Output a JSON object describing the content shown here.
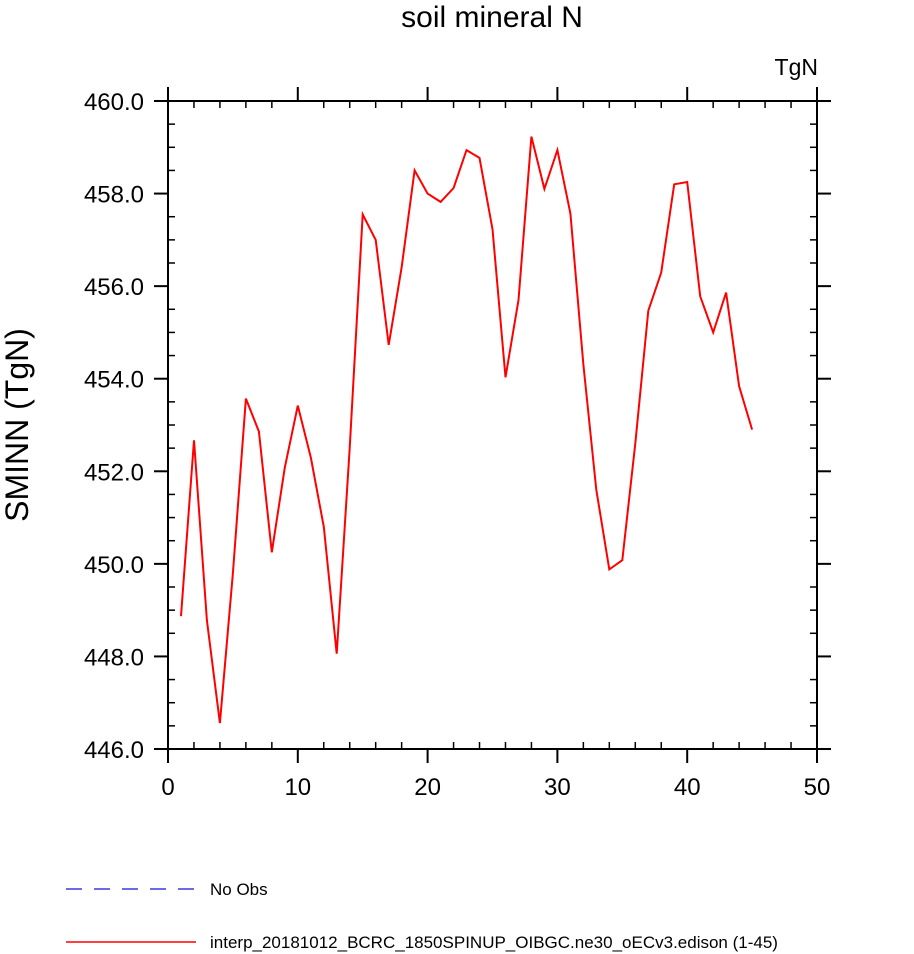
{
  "chart_data": {
    "type": "line",
    "title": "soil mineral N",
    "units": "TgN",
    "xlabel": "",
    "ylabel": "SMINN  (TgN)",
    "xlim": [
      0,
      50
    ],
    "ylim": [
      446,
      460
    ],
    "x_ticks": [
      0,
      10,
      20,
      30,
      40,
      50
    ],
    "x_tick_labels": [
      "0",
      "10",
      "20",
      "30",
      "40",
      "50"
    ],
    "y_ticks": [
      446,
      448,
      450,
      452,
      454,
      456,
      458,
      460
    ],
    "y_tick_labels": [
      "446.0",
      "448.0",
      "450.0",
      "452.0",
      "454.0",
      "456.0",
      "458.0",
      "460.0"
    ],
    "grid": false,
    "legend_position": "bottom",
    "legend": [
      {
        "label": "No Obs",
        "color": "#3a3adf",
        "style": "dashed"
      },
      {
        "label": "interp_20181012_BCRC_1850SPINUP_OIBGC.ne30_oECv3.edison (1-45)",
        "color": "#ff0000",
        "style": "solid"
      }
    ],
    "series": [
      {
        "name": "interp_20181012_BCRC_1850SPINUP_OIBGC.ne30_oECv3.edison (1-45)",
        "color": "#ff0000",
        "x": [
          1,
          2,
          3,
          4,
          5,
          6,
          7,
          8,
          9,
          10,
          11,
          12,
          13,
          14,
          15,
          16,
          17,
          18,
          19,
          20,
          21,
          22,
          23,
          24,
          25,
          26,
          27,
          28,
          29,
          30,
          31,
          32,
          33,
          34,
          35,
          36,
          37,
          38,
          39,
          40,
          41,
          42,
          43,
          44,
          45
        ],
        "y": [
          448.87,
          452.67,
          448.78,
          446.56,
          449.8,
          453.57,
          452.86,
          450.25,
          452.08,
          453.42,
          452.3,
          450.8,
          448.06,
          452.5,
          457.55,
          457.0,
          454.73,
          456.4,
          458.5,
          458.0,
          457.82,
          458.12,
          458.94,
          458.77,
          457.23,
          454.03,
          455.7,
          459.23,
          458.1,
          458.94,
          457.57,
          454.3,
          451.6,
          449.88,
          450.08,
          452.6,
          455.47,
          456.29,
          458.2,
          458.25,
          455.78,
          455.0,
          455.86,
          453.84,
          452.9
        ]
      }
    ]
  }
}
